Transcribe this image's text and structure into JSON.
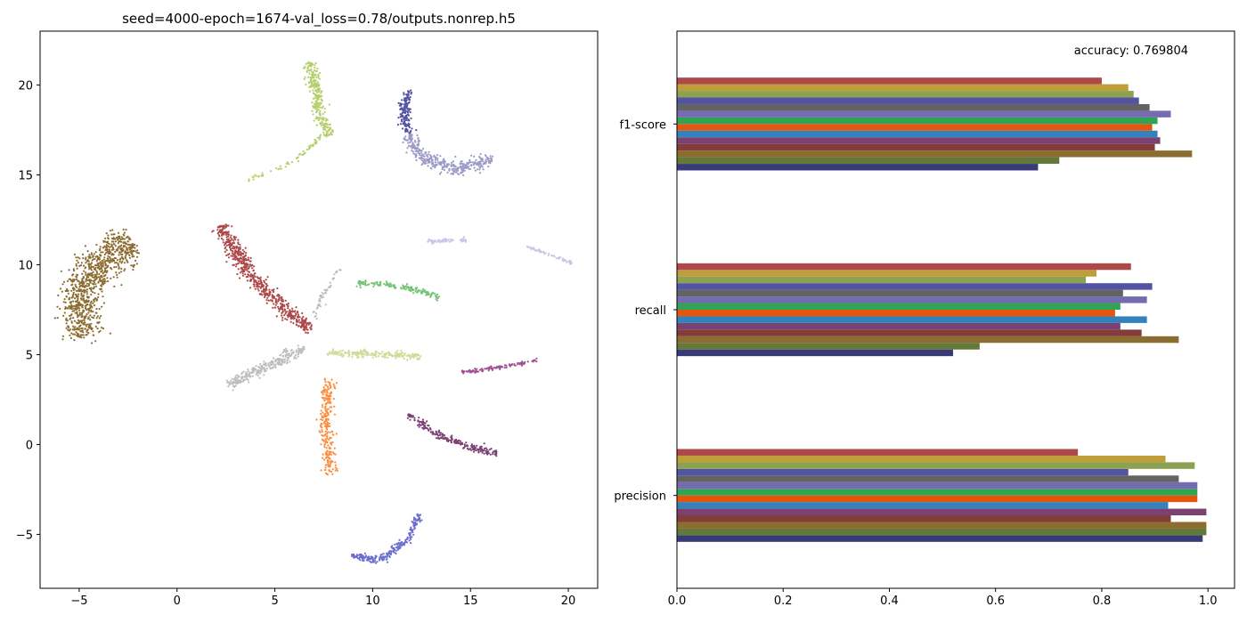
{
  "chart_data": [
    {
      "type": "scatter",
      "title": "seed=4000-epoch=1674-val_loss=0.78/outputs.nonrep.h5",
      "xlabel": "",
      "ylabel": "",
      "xlim": [
        -7,
        21.5
      ],
      "ylim": [
        -8,
        23
      ],
      "xticks": [
        -5,
        0,
        5,
        10,
        15,
        20
      ],
      "yticks": [
        -5,
        0,
        5,
        10,
        15,
        20
      ],
      "grid": false,
      "clusters": [
        {
          "color": "#8c6d31",
          "path": [
            [
              -4.8,
              6
            ],
            [
              -5.0,
              8
            ],
            [
              -4.5,
              9.5
            ],
            [
              -3.6,
              10.5
            ],
            [
              -2.2,
              11.1
            ]
          ],
          "width": 1.1,
          "count": 900
        },
        {
          "color": "#ad494a",
          "path": [
            [
              2.2,
              12.2
            ],
            [
              2.8,
              11
            ],
            [
              4,
              9.2
            ],
            [
              5.5,
              7.5
            ],
            [
              6.8,
              6.4
            ]
          ],
          "width": 0.45,
          "count": 600
        },
        {
          "color": "#b5cf6b",
          "path": [
            [
              6.8,
              21.3
            ],
            [
              7.1,
              19.5
            ],
            [
              7.4,
              18
            ],
            [
              7.8,
              17.2
            ]
          ],
          "width": 0.35,
          "count": 280
        },
        {
          "color": "#b5cf6b",
          "path": [
            [
              3.6,
              14.7
            ],
            [
              5.0,
              15.3
            ],
            [
              6.3,
              16.0
            ],
            [
              7.4,
              17.2
            ]
          ],
          "width": 0.15,
          "count": 60
        },
        {
          "color": "#5254a3",
          "path": [
            [
              11.8,
              19.7
            ],
            [
              11.6,
              18.5
            ],
            [
              11.8,
              17.3
            ]
          ],
          "width": 0.3,
          "count": 160
        },
        {
          "color": "#9e9ac8",
          "path": [
            [
              11.8,
              17.2
            ],
            [
              12.6,
              15.9
            ],
            [
              14.2,
              15.3
            ],
            [
              16.2,
              15.9
            ]
          ],
          "width": 0.4,
          "count": 380
        },
        {
          "color": "#c6c6e6",
          "path": [
            [
              12.8,
              11.3
            ],
            [
              14.8,
              11.4
            ]
          ],
          "width": 0.12,
          "count": 70
        },
        {
          "color": "#c6c6e6",
          "path": [
            [
              17.9,
              11.0
            ],
            [
              20.2,
              10.1
            ]
          ],
          "width": 0.08,
          "count": 60
        },
        {
          "color": "#74c476",
          "path": [
            [
              9.2,
              9.0
            ],
            [
              11.5,
              8.8
            ],
            [
              13.4,
              8.2
            ]
          ],
          "width": 0.18,
          "count": 150
        },
        {
          "color": "#d0db97",
          "path": [
            [
              7.6,
              5.1
            ],
            [
              10.5,
              5.0
            ],
            [
              12.4,
              4.9
            ]
          ],
          "width": 0.22,
          "count": 200
        },
        {
          "color": "#bdbdbd",
          "path": [
            [
              2.6,
              3.3
            ],
            [
              4.5,
              4.3
            ],
            [
              6.5,
              5.4
            ]
          ],
          "width": 0.35,
          "count": 260
        },
        {
          "color": "#bdbdbd",
          "path": [
            [
              7.0,
              7.0
            ],
            [
              7.4,
              8.2
            ],
            [
              8.3,
              9.8
            ]
          ],
          "width": 0.15,
          "count": 50
        },
        {
          "color": "#a55194",
          "path": [
            [
              14.5,
              4.0
            ],
            [
              16.5,
              4.3
            ],
            [
              18.5,
              4.7
            ]
          ],
          "width": 0.12,
          "count": 110
        },
        {
          "color": "#fd8d3c",
          "path": [
            [
              7.8,
              3.6
            ],
            [
              7.6,
              1.5
            ],
            [
              7.8,
              -1.7
            ]
          ],
          "width": 0.35,
          "count": 260
        },
        {
          "color": "#7b4173",
          "path": [
            [
              11.8,
              1.7
            ],
            [
              13.2,
              0.6
            ],
            [
              14.8,
              -0.1
            ],
            [
              16.4,
              -0.5
            ]
          ],
          "width": 0.22,
          "count": 220
        },
        {
          "color": "#6b6ecf",
          "path": [
            [
              8.9,
              -6.2
            ],
            [
              10.4,
              -6.4
            ],
            [
              11.8,
              -5.3
            ],
            [
              12.4,
              -3.8
            ]
          ],
          "width": 0.22,
          "count": 240
        }
      ]
    },
    {
      "type": "bar",
      "orientation": "horizontal",
      "categories": [
        "precision",
        "recall",
        "f1-score"
      ],
      "xlim": [
        0,
        1.05
      ],
      "xticks": [
        "0.0",
        "0.2",
        "0.4",
        "0.6",
        "0.8",
        "1.0"
      ],
      "annotation": "accuracy: 0.769804",
      "grid": false,
      "series": [
        {
          "color": "#393b79",
          "values": [
            0.99,
            0.52,
            0.68
          ]
        },
        {
          "color": "#637939",
          "values": [
            0.997,
            0.57,
            0.72
          ]
        },
        {
          "color": "#8c6d31",
          "values": [
            0.997,
            0.945,
            0.97
          ]
        },
        {
          "color": "#843c39",
          "values": [
            0.93,
            0.875,
            0.9
          ]
        },
        {
          "color": "#7b4173",
          "values": [
            0.997,
            0.835,
            0.91
          ]
        },
        {
          "color": "#3182bd",
          "values": [
            0.925,
            0.885,
            0.905
          ]
        },
        {
          "color": "#e6550d",
          "values": [
            0.98,
            0.825,
            0.895
          ]
        },
        {
          "color": "#31a354",
          "values": [
            0.98,
            0.835,
            0.905
          ]
        },
        {
          "color": "#756bb1",
          "values": [
            0.98,
            0.885,
            0.93
          ]
        },
        {
          "color": "#636363",
          "values": [
            0.945,
            0.84,
            0.89
          ]
        },
        {
          "color": "#5254a3",
          "values": [
            0.85,
            0.895,
            0.87
          ]
        },
        {
          "color": "#8ca252",
          "values": [
            0.975,
            0.77,
            0.86
          ]
        },
        {
          "color": "#bd9e39",
          "values": [
            0.92,
            0.79,
            0.85
          ]
        },
        {
          "color": "#ad494a",
          "values": [
            0.755,
            0.855,
            0.8
          ]
        }
      ]
    }
  ]
}
